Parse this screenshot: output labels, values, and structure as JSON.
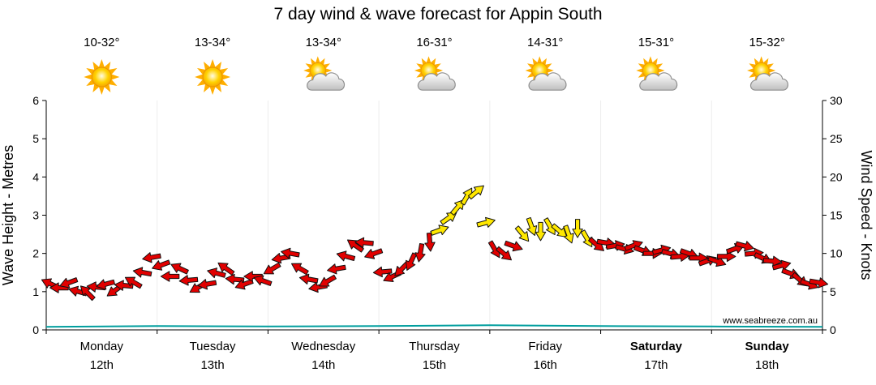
{
  "colors": {
    "temp_text": "#336600",
    "date_text": "#8c8c8c",
    "day_text": "#111111",
    "arrow_red": "#e10000",
    "arrow_yellow": "#ffe800",
    "arrow_outline": "#111111",
    "wave_line": "#009e9e",
    "axis": "#000000",
    "watermark": "#b9b9b9"
  },
  "chart_data": {
    "type": "scatter",
    "title": "7 day wind & wave forecast for Appin South",
    "watermark": "www.seabreeze.com.au",
    "left_axis": {
      "label": "Wave Height - Metres",
      "range": [
        0,
        6
      ],
      "ticks": [
        0,
        1,
        2,
        3,
        4,
        5,
        6
      ]
    },
    "right_axis": {
      "label": "Wind Speed - Knots",
      "range": [
        0,
        30
      ],
      "ticks": [
        0,
        5,
        10,
        15,
        20,
        25,
        30
      ]
    },
    "x_axis": {
      "range_hours": [
        0,
        168
      ],
      "unit": "days"
    },
    "days": [
      {
        "name": "Monday",
        "date": "12th",
        "temps": "10-32°",
        "icon": "sunny",
        "bold": false
      },
      {
        "name": "Tuesday",
        "date": "13th",
        "temps": "13-34°",
        "icon": "sunny",
        "bold": false
      },
      {
        "name": "Wednesday",
        "date": "14th",
        "temps": "13-34°",
        "icon": "partly-cloudy",
        "bold": false
      },
      {
        "name": "Thursday",
        "date": "15th",
        "temps": "16-31°",
        "icon": "partly-cloudy",
        "bold": false
      },
      {
        "name": "Friday",
        "date": "16th",
        "temps": "14-31°",
        "icon": "partly-cloudy",
        "bold": false
      },
      {
        "name": "Saturday",
        "date": "17th",
        "temps": "15-31°",
        "icon": "partly-cloudy",
        "bold": true
      },
      {
        "name": "Sunday",
        "date": "18th",
        "temps": "15-32°",
        "icon": "partly-cloudy",
        "bold": true
      }
    ],
    "series": [
      {
        "name": "Wind Speed",
        "type": "wind-arrows",
        "units": "knots",
        "axis": "right",
        "point_format": [
          "hours_from_monday_00",
          "knots",
          "direction_deg",
          "color_key"
        ],
        "points": [
          [
            1,
            6,
            205,
            "r"
          ],
          [
            3,
            5.5,
            180,
            "r"
          ],
          [
            5,
            6.2,
            160,
            "r"
          ],
          [
            7,
            5,
            195,
            "r"
          ],
          [
            9,
            4.8,
            225,
            "r"
          ],
          [
            11,
            5.6,
            185,
            "r"
          ],
          [
            13,
            6,
            165,
            "r"
          ],
          [
            15,
            5.2,
            145,
            "r"
          ],
          [
            17,
            5.8,
            185,
            "r"
          ],
          [
            19,
            6.2,
            210,
            "r"
          ],
          [
            21,
            7.5,
            190,
            "r"
          ],
          [
            23,
            9.5,
            170,
            "r"
          ],
          [
            25,
            8.5,
            160,
            "r"
          ],
          [
            27,
            7,
            180,
            "r"
          ],
          [
            29,
            8,
            205,
            "r"
          ],
          [
            31,
            6.5,
            175,
            "r"
          ],
          [
            33,
            5.6,
            150,
            "r"
          ],
          [
            35,
            6,
            170,
            "r"
          ],
          [
            37,
            7.4,
            195,
            "r"
          ],
          [
            39,
            8,
            215,
            "r"
          ],
          [
            41,
            6.6,
            185,
            "r"
          ],
          [
            43,
            6,
            160,
            "r"
          ],
          [
            45,
            7,
            180,
            "r"
          ],
          [
            47,
            6.4,
            200,
            "r"
          ],
          [
            49,
            8,
            150,
            "r"
          ],
          [
            51,
            9.4,
            170,
            "r"
          ],
          [
            53,
            10,
            190,
            "r"
          ],
          [
            55,
            8,
            210,
            "r"
          ],
          [
            57,
            6.6,
            190,
            "r"
          ],
          [
            59,
            5.6,
            170,
            "r"
          ],
          [
            61,
            6.4,
            150,
            "r"
          ],
          [
            63,
            8,
            170,
            "r"
          ],
          [
            65,
            9.6,
            195,
            "r"
          ],
          [
            67,
            11,
            215,
            "r"
          ],
          [
            69,
            11.4,
            185,
            "r"
          ],
          [
            71,
            10,
            160,
            "r"
          ],
          [
            73,
            7.6,
            175,
            "r"
          ],
          [
            75,
            7,
            155,
            "r"
          ],
          [
            77,
            8,
            135,
            "r"
          ],
          [
            79,
            9,
            115,
            "r"
          ],
          [
            81,
            10.2,
            100,
            "r"
          ],
          [
            83,
            11.6,
            85,
            "r"
          ],
          [
            85,
            13,
            340,
            "y"
          ],
          [
            87,
            14.6,
            325,
            "y"
          ],
          [
            89,
            16,
            310,
            "y"
          ],
          [
            91,
            17.4,
            300,
            "y"
          ],
          [
            93,
            18,
            320,
            "y"
          ],
          [
            95,
            14,
            345,
            "y"
          ],
          [
            97,
            10.6,
            60,
            "r"
          ],
          [
            99,
            10,
            40,
            "r"
          ],
          [
            101,
            11,
            20,
            "r"
          ],
          [
            103,
            12.6,
            50,
            "y"
          ],
          [
            105,
            13.6,
            70,
            "y"
          ],
          [
            107,
            13,
            90,
            "y"
          ],
          [
            109,
            13.6,
            60,
            "y"
          ],
          [
            111,
            13,
            40,
            "y"
          ],
          [
            113,
            12.6,
            70,
            "y"
          ],
          [
            115,
            13.4,
            90,
            "y"
          ],
          [
            117,
            12,
            60,
            "y"
          ],
          [
            119,
            11.2,
            40,
            "r"
          ],
          [
            121,
            11.4,
            10,
            "r"
          ],
          [
            123,
            11,
            350,
            "r"
          ],
          [
            125,
            10.6,
            15,
            "r"
          ],
          [
            127,
            11,
            340,
            "r"
          ],
          [
            129,
            10.4,
            20,
            "r"
          ],
          [
            131,
            10,
            0,
            "r"
          ],
          [
            133,
            10.4,
            345,
            "r"
          ],
          [
            135,
            10,
            15,
            "r"
          ],
          [
            137,
            9.6,
            355,
            "r"
          ],
          [
            139,
            10,
            20,
            "r"
          ],
          [
            141,
            9.4,
            0,
            "r"
          ],
          [
            143,
            9,
            340,
            "r"
          ],
          [
            145,
            9,
            20,
            "r"
          ],
          [
            147,
            9.6,
            0,
            "r"
          ],
          [
            149,
            10.6,
            340,
            "r"
          ],
          [
            151,
            11,
            15,
            "r"
          ],
          [
            153,
            10,
            355,
            "r"
          ],
          [
            155,
            9.4,
            25,
            "r"
          ],
          [
            157,
            9,
            5,
            "r"
          ],
          [
            159,
            8.4,
            345,
            "r"
          ],
          [
            161,
            7.4,
            20,
            "r"
          ],
          [
            163,
            6.6,
            40,
            "r"
          ],
          [
            165,
            6,
            20,
            "r"
          ],
          [
            167,
            6.2,
            10,
            "r"
          ]
        ]
      },
      {
        "name": "Wave Height",
        "type": "line",
        "units": "metres",
        "axis": "left",
        "points": [
          [
            0,
            0.08
          ],
          [
            24,
            0.1
          ],
          [
            48,
            0.09
          ],
          [
            72,
            0.1
          ],
          [
            96,
            0.12
          ],
          [
            120,
            0.1
          ],
          [
            144,
            0.09
          ],
          [
            168,
            0.08
          ]
        ]
      }
    ]
  }
}
